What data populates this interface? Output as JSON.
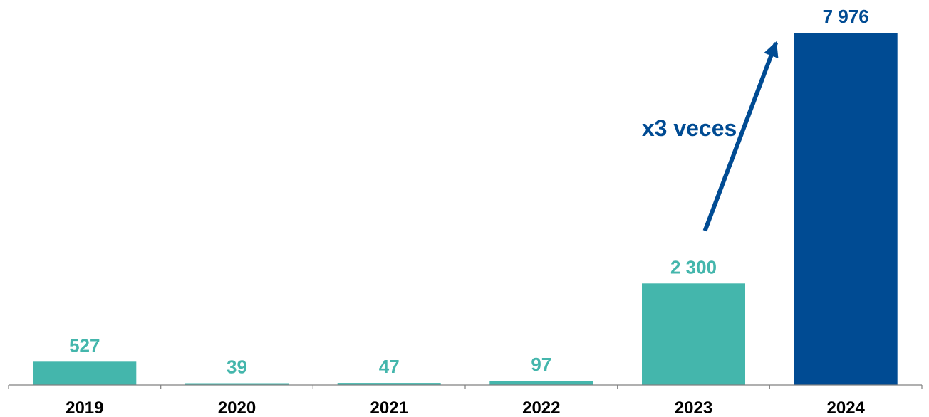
{
  "chart_data": {
    "type": "bar",
    "categories": [
      "2019",
      "2020",
      "2021",
      "2022",
      "2023",
      "2024"
    ],
    "values": [
      527,
      39,
      47,
      97,
      2300,
      7976
    ],
    "value_labels": [
      "527",
      "39",
      "47",
      "97",
      "2 300",
      "7 976"
    ],
    "title": "",
    "xlabel": "",
    "ylabel": "",
    "ylim": [
      0,
      7976
    ],
    "grid": false,
    "legend": "none",
    "annotation": {
      "text": "x3 veces",
      "from_category": "2023",
      "to_category": "2024"
    }
  },
  "colors": {
    "bar_default": "#44b6ac",
    "bar_highlight": "#004b93",
    "label_default": "#44b6ac",
    "label_highlight": "#004b93",
    "annotation": "#004b93",
    "axis": "#808080"
  }
}
